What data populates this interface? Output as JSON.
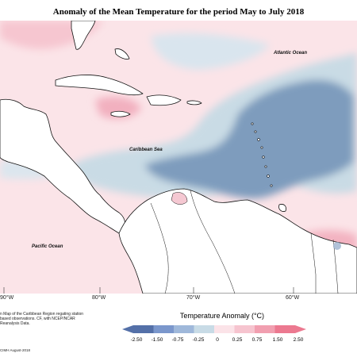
{
  "title": "Anomaly of the Mean Temperature for the period May to July 2018",
  "map_labels": {
    "atlantic": "Atlantic Ocean",
    "caribbean": "Caribbean Sea",
    "pacific": "Pacific Ocean"
  },
  "longitude_labels": [
    "90°W",
    "80°W",
    "70°W",
    "60°W"
  ],
  "legend": {
    "title": "Temperature Anomaly (°C)",
    "ticks": [
      "-2.50",
      "-1.50",
      "-0.75",
      "-0.25",
      "0",
      "0.25",
      "0.75",
      "1.50",
      "2.50"
    ],
    "colors": [
      "#5470a8",
      "#7b97cc",
      "#9fb8da",
      "#c8dbe6",
      "#fbe3e8",
      "#f6c4cf",
      "#f19fb0",
      "#ec7990"
    ]
  },
  "caption": "n Map of the Caribbean Region regating station based observations. CF, with NCEP/NCAR Reanalysis Data.",
  "credit": "CIMH August-2018"
}
